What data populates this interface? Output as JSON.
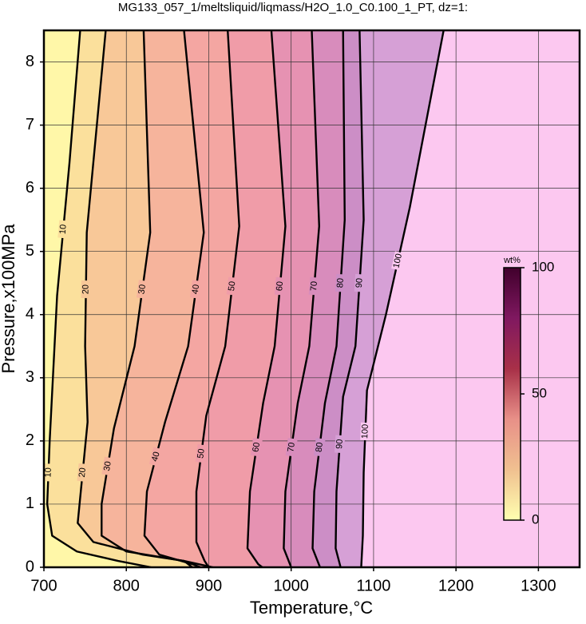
{
  "chart_data": {
    "type": "contour",
    "title": "MG133_057_1/meltsliquid/liqmass/H2O_1.0_C0.100_1_PT, dz=1:",
    "xlabel": "Temperature,°C",
    "ylabel": "Pressure,x100MPa",
    "xlim": [
      700,
      1350
    ],
    "xticks": [
      700,
      800,
      900,
      1000,
      1100,
      1200,
      1300
    ],
    "ylim": [
      0,
      8.5
    ],
    "yticks": [
      0,
      1,
      2,
      3,
      4,
      5,
      6,
      7,
      8
    ],
    "grid": true,
    "fill_colors": [
      "#fff7a8",
      "#fbe09c",
      "#f8c898",
      "#f6b49c",
      "#f4a6a2",
      "#f09ca8",
      "#e692b2",
      "#d88cbc",
      "#cc8ec6",
      "#d6a0d6",
      "#fcc8f0"
    ],
    "contours": [
      {
        "level": 10,
        "x": [
          744,
          731,
          716,
          707,
          704,
          710,
          740,
          790,
          830
        ],
        "y": [
          8.5,
          6.4,
          4.3,
          2,
          1,
          0.5,
          0.25,
          0.1,
          0
        ]
      },
      {
        "level": 20,
        "x": [
          775,
          752,
          750,
          753,
          741,
          760,
          820,
          870,
          880
        ],
        "y": [
          8.5,
          5.3,
          3.5,
          2.3,
          0.7,
          0.4,
          0.2,
          0.1,
          0
        ]
      },
      {
        "level": 30,
        "x": [
          821,
          829,
          810,
          785,
          770,
          770,
          800,
          870,
          905
        ],
        "y": [
          8.5,
          5.3,
          3.5,
          2.2,
          1,
          0.5,
          0.25,
          0.1,
          0
        ]
      },
      {
        "level": 40,
        "x": [
          870,
          894,
          875,
          847,
          825,
          822,
          840,
          880,
          890
        ],
        "y": [
          8.5,
          5.3,
          3.5,
          2.3,
          1.2,
          0.5,
          0.2,
          0.05,
          0
        ]
      },
      {
        "level": 50,
        "x": [
          923,
          937,
          920,
          897,
          885,
          885,
          895,
          900
        ],
        "y": [
          8.5,
          5.4,
          3.5,
          2.4,
          1.2,
          0.4,
          0.1,
          0
        ]
      },
      {
        "level": 60,
        "x": [
          976,
          993,
          980,
          966,
          950,
          947,
          960,
          965
        ],
        "y": [
          8.5,
          5.4,
          3.5,
          2.6,
          1.2,
          0.3,
          0.05,
          0
        ]
      },
      {
        "level": 70,
        "x": [
          1025,
          1034,
          1022,
          1008,
          993,
          991,
          1000
        ],
        "y": [
          8.5,
          5.4,
          3.5,
          2.6,
          1.2,
          0.3,
          0
        ]
      },
      {
        "level": 80,
        "x": [
          1063,
          1065,
          1055,
          1041,
          1028,
          1026,
          1035
        ],
        "y": [
          8.5,
          5.5,
          3.5,
          2.6,
          1.2,
          0.3,
          0
        ]
      },
      {
        "level": 90,
        "x": [
          1083,
          1088,
          1078,
          1063,
          1055,
          1054,
          1060
        ],
        "y": [
          8.5,
          5.5,
          3.5,
          2.7,
          1.2,
          0.3,
          0
        ]
      },
      {
        "level": 100,
        "x": [
          1185,
          1144,
          1115,
          1092,
          1088,
          1087,
          1085
        ],
        "y": [
          8.5,
          5.7,
          4,
          2.8,
          1.5,
          0.5,
          0
        ]
      }
    ],
    "colorbar": {
      "label": "wt%",
      "lim": [
        0,
        100
      ],
      "ticks": [
        0,
        50,
        100
      ],
      "colors": [
        "#ffffb0",
        "#f0c090",
        "#e89088",
        "#a83048",
        "#801860",
        "#40002c"
      ]
    }
  }
}
